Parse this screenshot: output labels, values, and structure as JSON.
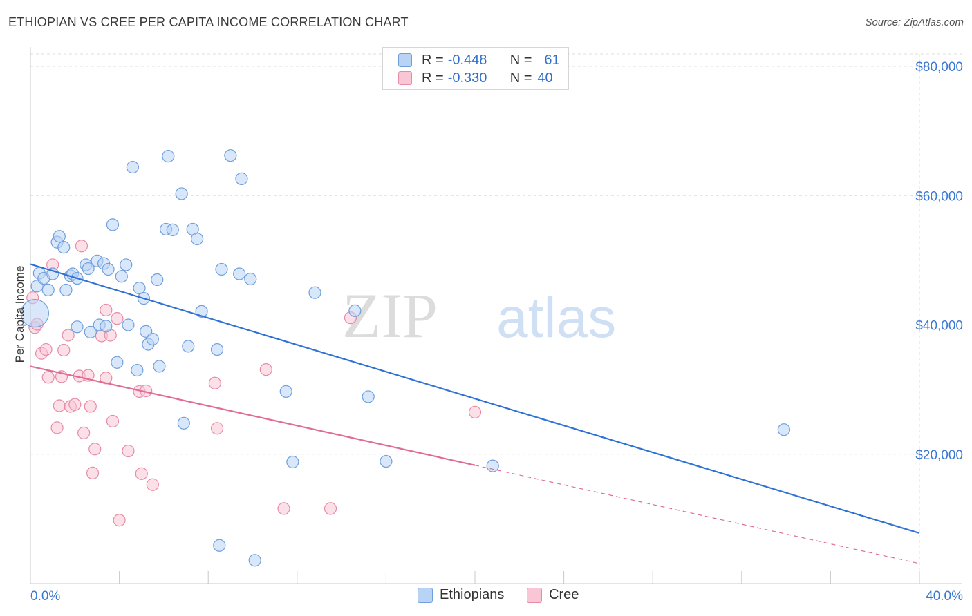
{
  "title": "ETHIOPIAN VS CREE PER CAPITA INCOME CORRELATION CHART",
  "source": "Source: ZipAtlas.com",
  "watermark": {
    "zip": "ZIP",
    "atlas": "atlas"
  },
  "legend_top": [
    {
      "r_label": "R =",
      "r_value": "-0.448",
      "n_label": "N =",
      "n_value": "61"
    },
    {
      "r_label": "R =",
      "r_value": "-0.330",
      "n_label": "N =",
      "n_value": "40"
    }
  ],
  "legend_bottom": {
    "ethiopians": "Ethiopians",
    "cree": "Cree"
  },
  "colors": {
    "ethiopians_fill": "#b9d3f5",
    "ethiopians_stroke": "#6f9fdc",
    "ethiopians_line": "#2f72d6",
    "cree_fill": "#f9c6d6",
    "cree_stroke": "#e88aa8",
    "cree_line": "#e06c96",
    "axis_text": "#3a78d4",
    "grid": "#dddddd"
  },
  "chart_data": {
    "type": "scatter",
    "title": "ETHIOPIAN VS CREE PER CAPITA INCOME CORRELATION CHART",
    "xlabel": "",
    "ylabel": "Per Capita Income",
    "xlim": [
      0,
      40
    ],
    "ylim": [
      0,
      80000
    ],
    "x_tick_labels": [
      "0.0%",
      "40.0%"
    ],
    "y_ticks": [
      20000,
      40000,
      60000,
      80000
    ],
    "y_tick_labels": [
      "$20,000",
      "$40,000",
      "$60,000",
      "$80,000"
    ],
    "grid": true,
    "legend_position": "top-center",
    "series": [
      {
        "name": "Ethiopians",
        "r": -0.448,
        "n": 61,
        "trend": {
          "x": [
            0,
            40
          ],
          "y": [
            49400,
            7800
          ],
          "extrapolated_from": null
        },
        "points": [
          [
            0.2,
            41800
          ],
          [
            0.3,
            46000
          ],
          [
            0.4,
            48000
          ],
          [
            0.6,
            47200
          ],
          [
            0.8,
            45400
          ],
          [
            1.0,
            47900
          ],
          [
            1.2,
            52800
          ],
          [
            1.3,
            53700
          ],
          [
            1.5,
            52000
          ],
          [
            1.6,
            45400
          ],
          [
            1.8,
            47600
          ],
          [
            1.9,
            47900
          ],
          [
            2.1,
            47200
          ],
          [
            2.1,
            39700
          ],
          [
            2.5,
            49300
          ],
          [
            2.6,
            48700
          ],
          [
            2.7,
            38900
          ],
          [
            3.0,
            49900
          ],
          [
            3.1,
            40000
          ],
          [
            3.3,
            49500
          ],
          [
            3.4,
            39800
          ],
          [
            3.5,
            48600
          ],
          [
            3.7,
            55500
          ],
          [
            3.9,
            34200
          ],
          [
            4.1,
            47500
          ],
          [
            4.3,
            49300
          ],
          [
            4.4,
            40000
          ],
          [
            4.6,
            64400
          ],
          [
            4.8,
            33000
          ],
          [
            4.9,
            45700
          ],
          [
            5.1,
            44100
          ],
          [
            5.2,
            39000
          ],
          [
            5.3,
            37000
          ],
          [
            5.5,
            37800
          ],
          [
            5.7,
            47000
          ],
          [
            5.8,
            33600
          ],
          [
            6.1,
            54800
          ],
          [
            6.2,
            66100
          ],
          [
            6.4,
            54700
          ],
          [
            6.8,
            60300
          ],
          [
            6.9,
            24800
          ],
          [
            7.1,
            36700
          ],
          [
            7.3,
            54800
          ],
          [
            7.5,
            53300
          ],
          [
            7.7,
            42100
          ],
          [
            8.4,
            36200
          ],
          [
            8.5,
            5900
          ],
          [
            8.6,
            48600
          ],
          [
            9.0,
            66200
          ],
          [
            9.4,
            47900
          ],
          [
            9.5,
            62600
          ],
          [
            9.9,
            47100
          ],
          [
            10.1,
            3600
          ],
          [
            11.5,
            29700
          ],
          [
            11.8,
            18800
          ],
          [
            12.8,
            45000
          ],
          [
            14.6,
            42200
          ],
          [
            15.2,
            28900
          ],
          [
            16.0,
            18900
          ],
          [
            20.8,
            18200
          ],
          [
            33.9,
            23800
          ]
        ]
      },
      {
        "name": "Cree",
        "r": -0.33,
        "n": 40,
        "trend": {
          "x": [
            0,
            20
          ],
          "y": [
            33600,
            18300
          ],
          "dashed_to": [
            40,
            3100
          ]
        },
        "points": [
          [
            0.1,
            44200
          ],
          [
            0.2,
            39600
          ],
          [
            0.3,
            40100
          ],
          [
            0.5,
            35600
          ],
          [
            0.7,
            36200
          ],
          [
            0.8,
            31900
          ],
          [
            1.0,
            49300
          ],
          [
            1.2,
            24100
          ],
          [
            1.3,
            27500
          ],
          [
            1.4,
            32000
          ],
          [
            1.5,
            36100
          ],
          [
            1.7,
            38400
          ],
          [
            1.8,
            27400
          ],
          [
            2.0,
            27700
          ],
          [
            2.2,
            32100
          ],
          [
            2.3,
            52200
          ],
          [
            2.4,
            23300
          ],
          [
            2.6,
            32200
          ],
          [
            2.7,
            27400
          ],
          [
            2.8,
            17100
          ],
          [
            2.9,
            20800
          ],
          [
            3.2,
            38300
          ],
          [
            3.4,
            31800
          ],
          [
            3.4,
            42300
          ],
          [
            3.6,
            38400
          ],
          [
            3.7,
            25100
          ],
          [
            3.9,
            41000
          ],
          [
            4.0,
            9800
          ],
          [
            4.4,
            20500
          ],
          [
            4.9,
            29700
          ],
          [
            5.0,
            17000
          ],
          [
            5.2,
            29800
          ],
          [
            5.5,
            15300
          ],
          [
            8.3,
            31000
          ],
          [
            8.4,
            24000
          ],
          [
            10.6,
            33100
          ],
          [
            11.4,
            11600
          ],
          [
            13.5,
            11600
          ],
          [
            14.4,
            41100
          ],
          [
            20.0,
            26500
          ]
        ]
      }
    ]
  }
}
